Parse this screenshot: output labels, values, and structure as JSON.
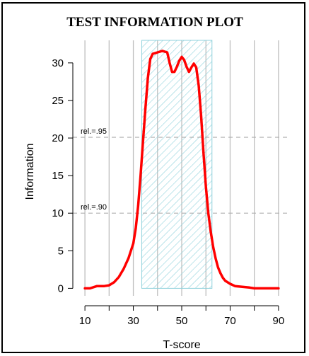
{
  "chart_data": {
    "type": "line",
    "title": "TEST INFORMATION PLOT",
    "xlabel": "T-score",
    "ylabel": "Information",
    "xlim": [
      5,
      95
    ],
    "ylim": [
      -1,
      33
    ],
    "x_ticks": [
      10,
      20,
      30,
      40,
      50,
      60,
      70,
      80,
      90
    ],
    "x_tick_labels": [
      "10",
      "",
      "30",
      "",
      "50",
      "",
      "70",
      "",
      "90"
    ],
    "y_ticks": [
      0,
      5,
      10,
      15,
      20,
      25,
      30
    ],
    "y_tick_labels": [
      "0",
      "5",
      "10",
      "15",
      "20",
      "25",
      "30"
    ],
    "grid": {
      "vertical": true,
      "color": "#bfbfbf"
    },
    "series": [
      {
        "color": "#ff0000",
        "x": [
          10,
          12,
          15,
          18,
          20,
          22,
          24,
          26,
          28,
          30,
          31,
          32,
          33,
          34,
          35,
          36,
          37,
          38,
          40,
          42,
          44,
          45,
          46,
          47,
          48,
          49,
          50,
          51,
          52,
          53,
          54,
          55,
          56,
          57,
          58,
          59,
          60,
          61,
          62,
          63,
          64,
          65,
          66,
          67,
          68,
          70,
          72,
          75,
          78,
          80,
          85,
          90
        ],
        "y": [
          0.0,
          0.0,
          0.3,
          0.3,
          0.4,
          0.8,
          1.5,
          2.6,
          4.0,
          6.0,
          8.0,
          11.0,
          15.0,
          19.5,
          24.0,
          28.0,
          30.5,
          31.2,
          31.4,
          31.6,
          31.4,
          30.0,
          28.8,
          28.8,
          29.5,
          30.3,
          30.8,
          30.4,
          29.5,
          28.8,
          29.4,
          29.9,
          29.4,
          27.0,
          23.0,
          18.0,
          13.5,
          10.0,
          7.5,
          5.5,
          4.0,
          2.8,
          2.0,
          1.4,
          1.0,
          0.6,
          0.3,
          0.2,
          0.1,
          0.0,
          0.0,
          0.0
        ]
      }
    ],
    "reliability_lines": [
      {
        "label": "rel.=.95",
        "y": 20.1
      },
      {
        "label": "rel.=.90",
        "y": 10.0
      }
    ],
    "shaded_region": {
      "x_range": [
        33.5,
        62.5
      ],
      "pattern": "diagonal hatch",
      "color": "#8fd2dc"
    }
  }
}
